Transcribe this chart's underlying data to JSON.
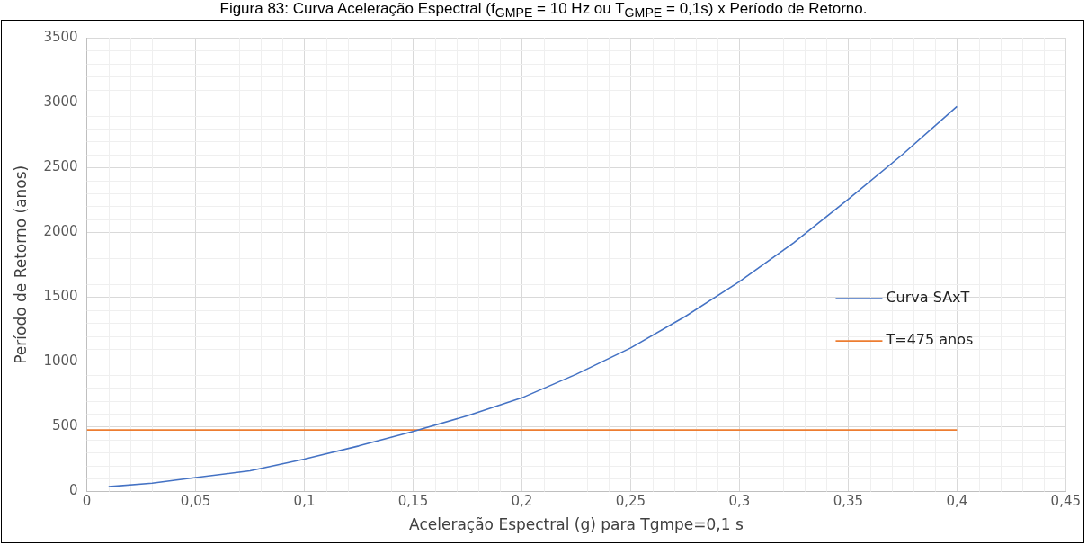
{
  "chart_data": {
    "type": "line",
    "title": "Figura 83: Curva Aceleração Espectral (f$_{GMPE}$ = 10 Hz ou T$_{GMPE}$ = 0,1s) x Período de Retorno.",
    "xlabel": "Aceleração Espectral (g) para Tgmpe=0,1 s",
    "ylabel": "Período de Retorno (anos)",
    "series": [
      {
        "name": "Curva SAxT",
        "color": "#4472c4",
        "x": [
          0.01,
          0.03,
          0.05,
          0.075,
          0.1,
          0.125,
          0.15,
          0.175,
          0.2,
          0.225,
          0.25,
          0.275,
          0.3,
          0.325,
          0.35,
          0.375,
          0.4
        ],
        "values": [
          38,
          65,
          108,
          160,
          251,
          352,
          464,
          585,
          723,
          905,
          1108,
          1350,
          1619,
          1920,
          2254,
          2600,
          2970
        ]
      },
      {
        "name": "T=475 anos",
        "color": "#ed7d31",
        "x": [
          0,
          0.4
        ],
        "values": [
          475,
          475
        ]
      }
    ],
    "xlim": [
      0,
      0.45
    ],
    "xticks": [
      0,
      {
        "value": 0.05,
        "label": "0,05"
      },
      {
        "value": 0.1,
        "label": "0,1"
      },
      {
        "value": 0.15,
        "label": "0,15"
      },
      {
        "value": 0.2,
        "label": "0,2"
      },
      {
        "value": 0.25,
        "label": "0,25"
      },
      {
        "value": 0.3,
        "label": "0,3"
      },
      {
        "value": 0.35,
        "label": "0,35"
      },
      {
        "value": 0.4,
        "label": "0,4"
      },
      {
        "value": 0.45,
        "label": "0,45"
      }
    ],
    "ylim": [
      0,
      3500
    ],
    "yticks": [
      0,
      500,
      1000,
      1500,
      2000,
      2500,
      3000,
      3500
    ],
    "grid": true,
    "legend": "right",
    "marker": "none",
    "line_style": "solid"
  }
}
